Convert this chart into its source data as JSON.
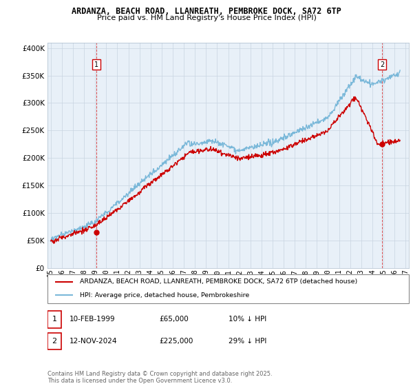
{
  "title": "ARDANZA, BEACH ROAD, LLANREATH, PEMBROKE DOCK, SA72 6TP",
  "subtitle": "Price paid vs. HM Land Registry's House Price Index (HPI)",
  "ytick_values": [
    0,
    50000,
    100000,
    150000,
    200000,
    250000,
    300000,
    350000,
    400000
  ],
  "ylim": [
    0,
    410000
  ],
  "xlim_start": 1995.0,
  "xlim_end": 2027.0,
  "sale1_x": 1999.12,
  "sale1_y": 65000,
  "sale2_x": 2024.88,
  "sale2_y": 225000,
  "hpi_color": "#7ab8d9",
  "price_color": "#cc0000",
  "marker_color": "#cc0000",
  "chart_bg": "#e8f0f8",
  "legend_label1": "ARDANZA, BEACH ROAD, LLANREATH, PEMBROKE DOCK, SA72 6TP (detached house)",
  "legend_label2": "HPI: Average price, detached house, Pembrokeshire",
  "note1_date": "10-FEB-1999",
  "note1_price": "£65,000",
  "note1_hpi": "10% ↓ HPI",
  "note2_date": "12-NOV-2024",
  "note2_price": "£225,000",
  "note2_hpi": "29% ↓ HPI",
  "footer": "Contains HM Land Registry data © Crown copyright and database right 2025.\nThis data is licensed under the Open Government Licence v3.0.",
  "grid_color": "#c8d4e0"
}
